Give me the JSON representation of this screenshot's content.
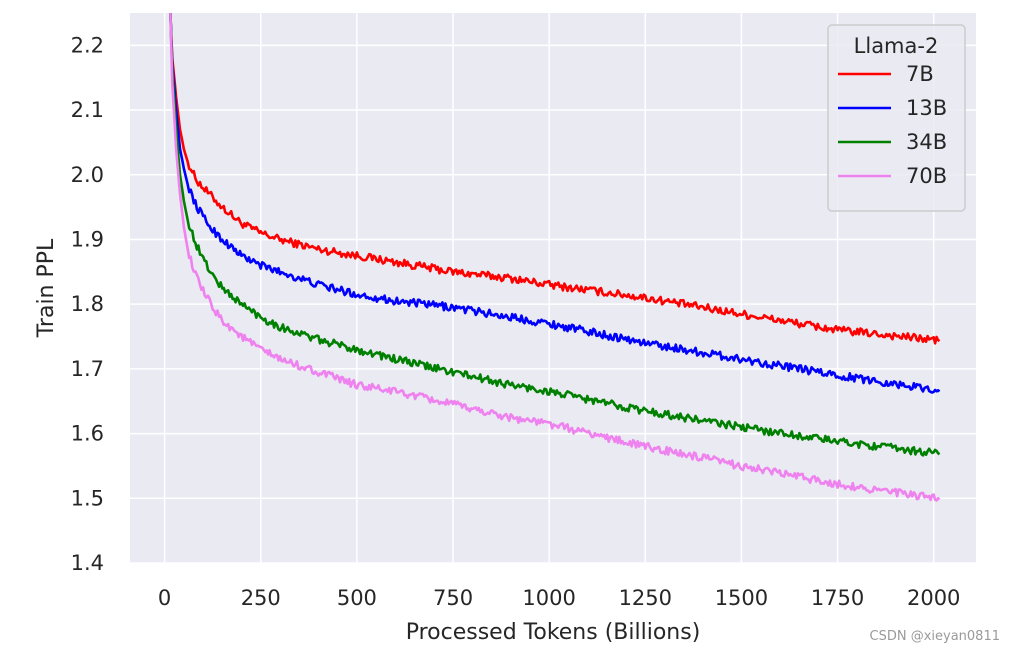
{
  "chart_data": {
    "type": "line",
    "title": "",
    "xlabel": "Processed Tokens (Billions)",
    "ylabel": "Train PPL",
    "xlim": [
      -90,
      2110
    ],
    "ylim": [
      1.4,
      2.25
    ],
    "xticks": [
      0,
      250,
      500,
      750,
      1000,
      1250,
      1500,
      1750,
      2000
    ],
    "yticks": [
      1.4,
      1.5,
      1.6,
      1.7,
      1.8,
      1.9,
      2.0,
      2.1,
      2.2
    ],
    "xtick_labels": [
      "0",
      "250",
      "500",
      "750",
      "1000",
      "1250",
      "1500",
      "1750",
      "2000"
    ],
    "ytick_labels": [
      "1.4",
      "1.5",
      "1.6",
      "1.7",
      "1.8",
      "1.9",
      "2.0",
      "2.1",
      "2.2"
    ],
    "grid": true,
    "legend": {
      "title": "Llama-2",
      "placement": "top-right"
    },
    "series": [
      {
        "name": "7B",
        "color": "#ff0000",
        "x": [
          15,
          20,
          30,
          40,
          50,
          60,
          80,
          100,
          125,
          150,
          200,
          250,
          300,
          400,
          500,
          600,
          750,
          900,
          1000,
          1250,
          1500,
          1750,
          2000,
          2015
        ],
        "y": [
          2.25,
          2.18,
          2.12,
          2.07,
          2.04,
          2.02,
          1.995,
          1.98,
          1.965,
          1.95,
          1.925,
          1.91,
          1.9,
          1.885,
          1.875,
          1.865,
          1.85,
          1.84,
          1.83,
          1.81,
          1.785,
          1.76,
          1.745,
          1.743
        ]
      },
      {
        "name": "13B",
        "color": "#0000ff",
        "x": [
          15,
          20,
          30,
          40,
          50,
          60,
          80,
          100,
          125,
          150,
          200,
          250,
          300,
          400,
          500,
          600,
          750,
          900,
          1000,
          1250,
          1500,
          1750,
          2000,
          2015
        ],
        "y": [
          2.25,
          2.17,
          2.1,
          2.04,
          2.01,
          1.985,
          1.955,
          1.935,
          1.915,
          1.9,
          1.875,
          1.86,
          1.85,
          1.83,
          1.815,
          1.805,
          1.795,
          1.78,
          1.77,
          1.74,
          1.715,
          1.69,
          1.668,
          1.665
        ]
      },
      {
        "name": "34B",
        "color": "#008000",
        "x": [
          15,
          20,
          30,
          40,
          50,
          60,
          80,
          100,
          125,
          150,
          200,
          250,
          300,
          400,
          500,
          600,
          750,
          900,
          1000,
          1250,
          1500,
          1750,
          2000,
          2015
        ],
        "y": [
          2.25,
          2.16,
          2.07,
          2.0,
          1.96,
          1.93,
          1.895,
          1.87,
          1.845,
          1.825,
          1.8,
          1.78,
          1.765,
          1.745,
          1.73,
          1.715,
          1.695,
          1.675,
          1.665,
          1.635,
          1.61,
          1.588,
          1.57,
          1.568
        ]
      },
      {
        "name": "70B",
        "color": "#ee82ee",
        "x": [
          15,
          20,
          30,
          40,
          50,
          60,
          80,
          100,
          125,
          150,
          200,
          250,
          300,
          400,
          500,
          600,
          750,
          900,
          1000,
          1250,
          1500,
          1750,
          2000,
          2015
        ],
        "y": [
          2.25,
          2.14,
          2.04,
          1.97,
          1.92,
          1.885,
          1.845,
          1.82,
          1.795,
          1.775,
          1.75,
          1.73,
          1.715,
          1.695,
          1.675,
          1.665,
          1.645,
          1.625,
          1.615,
          1.58,
          1.55,
          1.522,
          1.5,
          1.498
        ]
      }
    ]
  },
  "watermark": "CSDN @xieyan0811"
}
